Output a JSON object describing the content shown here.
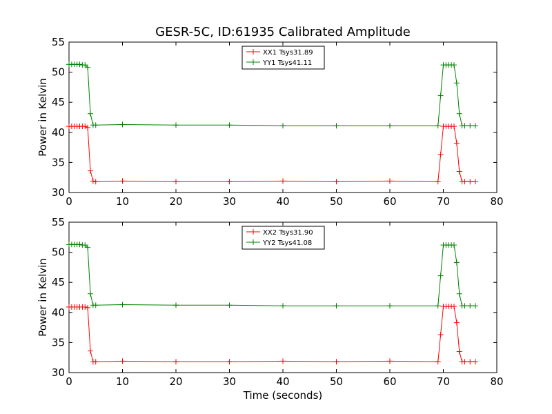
{
  "figure": {
    "title": "GESR-5C, ID:61935 Calibrated Amplitude",
    "xlabel": "Time (seconds)"
  },
  "chart_data": [
    {
      "type": "line",
      "title": "GESR-5C, ID:61935 Calibrated Amplitude",
      "xlabel": "",
      "ylabel": "Power in Kelvin",
      "xlim": [
        0,
        80
      ],
      "ylim": [
        30,
        55
      ],
      "xticks": [
        "0",
        "10",
        "20",
        "30",
        "40",
        "50",
        "60",
        "70",
        "80"
      ],
      "yticks": [
        "30",
        "35",
        "40",
        "45",
        "50",
        "55"
      ],
      "grid": false,
      "legend_position": "top-center",
      "marker": "plus",
      "series": [
        {
          "name": "XX1 Tsys31.89",
          "color": "#ff0000",
          "x": [
            0,
            0.5,
            1,
            1.5,
            2,
            2.5,
            3,
            3.5,
            4,
            4.5,
            5,
            10,
            20,
            30,
            40,
            50,
            60,
            69,
            69.5,
            70,
            70.5,
            71,
            71.5,
            72,
            72.5,
            73,
            73.5,
            74,
            75,
            76
          ],
          "y": [
            41.0,
            41.0,
            41.0,
            41.0,
            41.0,
            41.0,
            41.0,
            40.8,
            33.6,
            31.9,
            31.8,
            31.9,
            31.8,
            31.8,
            31.9,
            31.8,
            31.9,
            31.8,
            36.3,
            41.0,
            41.0,
            41.0,
            41.0,
            41.0,
            38.2,
            33.5,
            31.8,
            31.8,
            31.8,
            31.8
          ]
        },
        {
          "name": "YY1 Tsys41.11",
          "color": "#008000",
          "x": [
            0,
            0.5,
            1,
            1.5,
            2,
            2.5,
            3,
            3.5,
            4,
            4.5,
            5,
            10,
            20,
            30,
            40,
            50,
            60,
            69,
            69.5,
            70,
            70.5,
            71,
            71.5,
            72,
            72.5,
            73,
            73.5,
            74,
            75,
            76
          ],
          "y": [
            51.3,
            51.3,
            51.3,
            51.3,
            51.3,
            51.2,
            51.2,
            50.8,
            43.1,
            41.2,
            41.2,
            41.3,
            41.2,
            41.2,
            41.1,
            41.1,
            41.1,
            41.1,
            46.1,
            51.2,
            51.2,
            51.2,
            51.2,
            51.2,
            48.2,
            43.1,
            41.1,
            41.1,
            41.1,
            41.1
          ]
        }
      ]
    },
    {
      "type": "line",
      "title": "",
      "xlabel": "Time (seconds)",
      "ylabel": "Power in Kelvin",
      "xlim": [
        0,
        80
      ],
      "ylim": [
        30,
        55
      ],
      "xticks": [
        "0",
        "10",
        "20",
        "30",
        "40",
        "50",
        "60",
        "70",
        "80"
      ],
      "yticks": [
        "30",
        "35",
        "40",
        "45",
        "50",
        "55"
      ],
      "grid": false,
      "legend_position": "top-center",
      "marker": "plus",
      "series": [
        {
          "name": "XX2 Tsys31.90",
          "color": "#ff0000",
          "x": [
            0,
            0.5,
            1,
            1.5,
            2,
            2.5,
            3,
            3.5,
            4,
            4.5,
            5,
            10,
            20,
            30,
            40,
            50,
            60,
            69,
            69.5,
            70,
            70.5,
            71,
            71.5,
            72,
            72.5,
            73,
            73.5,
            74,
            75,
            76
          ],
          "y": [
            40.9,
            40.9,
            40.9,
            40.9,
            40.9,
            40.9,
            40.9,
            40.8,
            33.6,
            31.8,
            31.8,
            31.9,
            31.8,
            31.8,
            31.9,
            31.8,
            31.9,
            31.8,
            36.3,
            41.0,
            41.0,
            41.0,
            41.0,
            41.0,
            38.3,
            33.5,
            31.8,
            31.8,
            31.8,
            31.8
          ]
        },
        {
          "name": "YY2 Tsys41.08",
          "color": "#008000",
          "x": [
            0,
            0.5,
            1,
            1.5,
            2,
            2.5,
            3,
            3.5,
            4,
            4.5,
            5,
            10,
            20,
            30,
            40,
            50,
            60,
            69,
            69.5,
            70,
            70.5,
            71,
            71.5,
            72,
            72.5,
            73,
            73.5,
            74,
            75,
            76
          ],
          "y": [
            51.3,
            51.3,
            51.3,
            51.3,
            51.3,
            51.2,
            51.2,
            50.8,
            43.1,
            41.2,
            41.2,
            41.3,
            41.2,
            41.2,
            41.1,
            41.1,
            41.1,
            41.1,
            46.1,
            51.2,
            51.2,
            51.2,
            51.2,
            51.2,
            48.3,
            43.1,
            41.1,
            41.1,
            41.1,
            41.1
          ]
        }
      ]
    }
  ]
}
